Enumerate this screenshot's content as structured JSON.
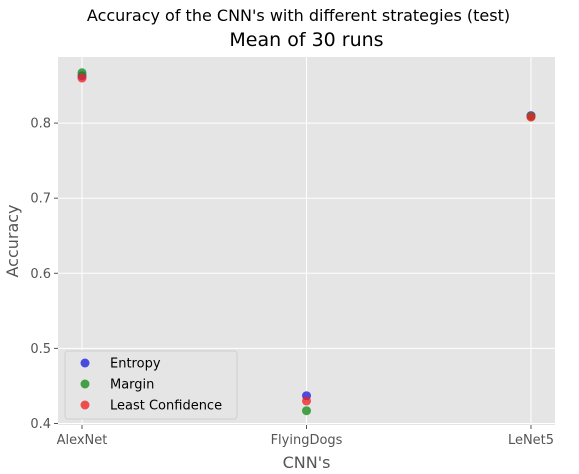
{
  "chart_data": {
    "type": "scatter",
    "suptitle": "Accuracy of the CNN's with different strategies (test)",
    "title": "Mean of 30 runs",
    "xlabel": "CNN's",
    "ylabel": "Accuracy",
    "categories": [
      "AlexNet",
      "FlyingDogs",
      "LeNet5"
    ],
    "ylim": [
      0.398,
      0.888
    ],
    "yticks": [
      0.4,
      0.5,
      0.6,
      0.7,
      0.8
    ],
    "grid": true,
    "legend_position": "lower-left",
    "series": [
      {
        "name": "Entropy",
        "color": "#1f1fe0",
        "values": [
          0.863,
          0.437,
          0.81
        ]
      },
      {
        "name": "Margin",
        "color": "#1a8c1a",
        "values": [
          0.867,
          0.417,
          0.809
        ]
      },
      {
        "name": "Least Confidence",
        "color": "#ee2222",
        "values": [
          0.86,
          0.43,
          0.808
        ]
      }
    ]
  }
}
